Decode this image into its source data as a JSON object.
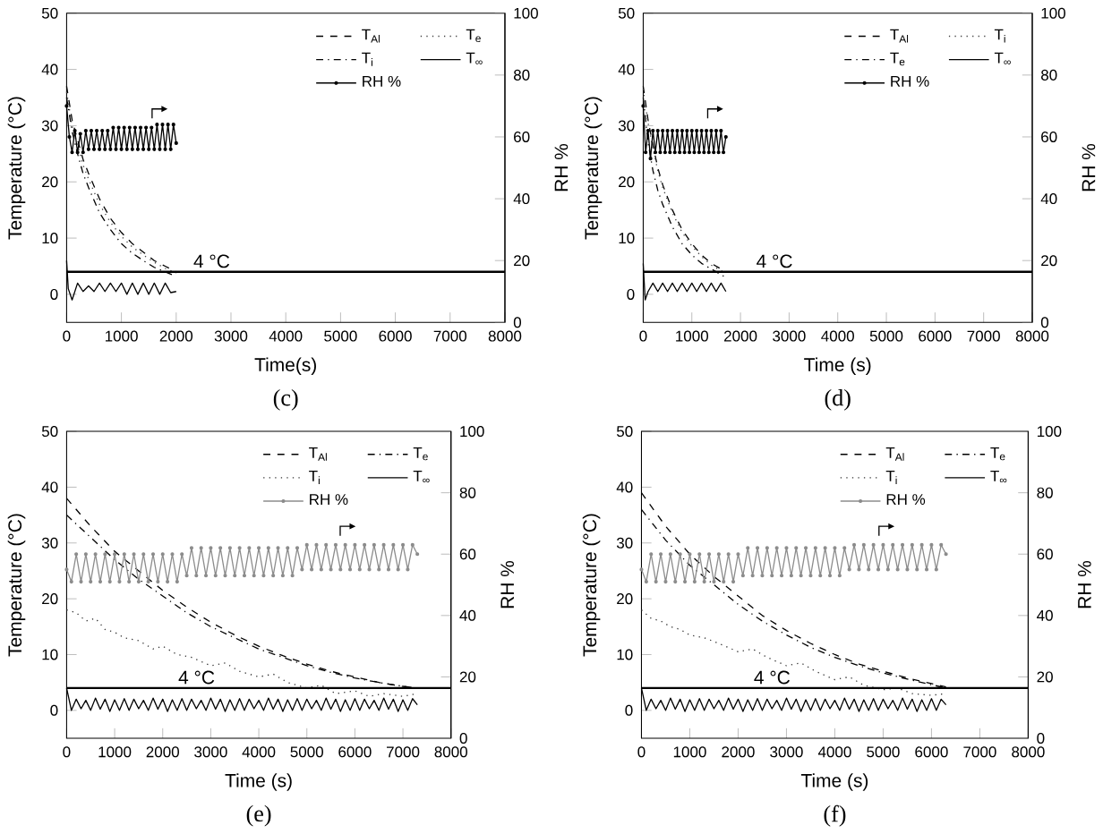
{
  "chart_data": [
    {
      "type": "line",
      "xlabel": "Time(s)",
      "ylabel": "Temperature (°C)",
      "y2label": "RH %",
      "xlim": [
        0,
        8000
      ],
      "xticks": [
        0,
        1000,
        2000,
        3000,
        4000,
        5000,
        6000,
        7000,
        8000
      ],
      "ylim": [
        -5,
        50
      ],
      "yticks": [
        0,
        10,
        20,
        30,
        40,
        50
      ],
      "y2lim": [
        0,
        100
      ],
      "y2ticks": [
        0,
        20,
        40,
        60,
        80,
        100
      ],
      "legend": "top right",
      "annotations": [
        "(c)"
      ],
      "ref_lines": [
        {
          "axis": "y",
          "value": 4,
          "label": "4 °C",
          "color": "#000000"
        }
      ],
      "series": [
        {
          "name": "T$_{Al}$",
          "color": "#000000",
          "line_style": "dashed",
          "x": [
            0,
            100,
            200,
            300,
            400,
            600,
            800,
            1000,
            1200,
            1400,
            1600,
            1800,
            2000
          ],
          "values": [
            37,
            31,
            27.5,
            24,
            21.5,
            17,
            13.5,
            11,
            9,
            7.5,
            6,
            5,
            4
          ]
        },
        {
          "name": "T$_{e}$",
          "color": "#444444",
          "line_style": "dotted",
          "x": [
            0,
            100,
            200,
            300,
            400,
            600,
            800,
            1000,
            1200,
            1400,
            1600,
            1800,
            2000
          ],
          "values": [
            36,
            30,
            26.5,
            23,
            20.5,
            16,
            12.8,
            10.3,
            8.4,
            7,
            5.7,
            4.6,
            3.8
          ]
        },
        {
          "name": "T$_{i}$",
          "color": "#000000",
          "line_style": "dashdot",
          "x": [
            0,
            100,
            200,
            300,
            400,
            600,
            800,
            1000,
            1200,
            1400,
            1600,
            1800,
            2000
          ],
          "values": [
            35,
            29,
            25,
            21.5,
            19,
            14.5,
            11.5,
            9,
            7.3,
            6,
            4.8,
            4,
            3.2
          ]
        },
        {
          "name": "T$_{∞}$",
          "color": "#000000",
          "line_style": "solid",
          "x": [
            0,
            30,
            100,
            200,
            300,
            400,
            500,
            600,
            700,
            800,
            900,
            1000,
            1100,
            1200,
            1300,
            1400,
            1500,
            1600,
            1700,
            1800,
            1900,
            2000
          ],
          "values": [
            6,
            1,
            -1,
            2,
            0.5,
            1.5,
            0.5,
            2,
            0.5,
            2,
            0.5,
            2,
            0,
            2,
            0,
            2,
            0,
            2,
            0,
            2,
            0.3,
            0.5
          ]
        },
        {
          "name": "RH %",
          "color": "#000000",
          "line_style": "solid",
          "marker": "circle",
          "axis": "y2",
          "x": [
            0,
            50,
            100,
            150,
            200,
            250,
            300,
            350,
            400,
            450,
            500,
            550,
            600,
            650,
            700,
            750,
            800,
            850,
            900,
            950,
            1000,
            1050,
            1100,
            1150,
            1200,
            1250,
            1300,
            1350,
            1400,
            1450,
            1500,
            1550,
            1600,
            1650,
            1700,
            1750,
            1800,
            1850,
            1900,
            1950,
            2000
          ],
          "values": [
            70,
            60,
            55,
            62,
            55,
            61,
            55,
            62,
            56,
            62,
            56,
            62,
            56,
            62,
            56,
            62,
            56,
            63,
            56,
            63,
            56,
            63,
            56,
            63,
            56,
            63,
            56,
            63,
            56,
            63,
            56,
            63,
            56,
            64,
            56,
            64,
            56,
            64,
            56,
            64,
            58
          ]
        }
      ]
    },
    {
      "type": "line",
      "xlabel": "Time (s)",
      "ylabel": "Temperature (°C)",
      "y2label": "RH %",
      "xlim": [
        0,
        8000
      ],
      "xticks": [
        0,
        1000,
        2000,
        3000,
        4000,
        5000,
        6000,
        7000,
        8000
      ],
      "ylim": [
        -5,
        50
      ],
      "yticks": [
        0,
        10,
        20,
        30,
        40,
        50
      ],
      "y2lim": [
        0,
        100
      ],
      "y2ticks": [
        0,
        20,
        40,
        60,
        80,
        100
      ],
      "legend": "top right",
      "annotations": [
        "(d)"
      ],
      "ref_lines": [
        {
          "axis": "y",
          "value": 4,
          "label": "4 °C",
          "color": "#000000"
        }
      ],
      "series": [
        {
          "name": "T$_{Al}$",
          "color": "#000000",
          "line_style": "dashed",
          "x": [
            0,
            100,
            200,
            300,
            400,
            600,
            800,
            1000,
            1200,
            1400,
            1600,
            1700
          ],
          "values": [
            37,
            31,
            26.5,
            22.5,
            19.5,
            15,
            11.5,
            9,
            7,
            5.5,
            4.5,
            4
          ]
        },
        {
          "name": "T$_{i}$",
          "color": "#444444",
          "line_style": "dotted",
          "x": [
            0,
            100,
            200,
            300,
            400,
            600,
            800,
            1000,
            1200,
            1400,
            1600,
            1700
          ],
          "values": [
            36.5,
            30.5,
            26,
            22,
            19,
            14.5,
            11,
            8.6,
            6.7,
            5.2,
            4.2,
            3.8
          ]
        },
        {
          "name": "T$_{e}$",
          "color": "#000000",
          "line_style": "dashdot",
          "x": [
            0,
            100,
            200,
            300,
            400,
            600,
            800,
            1000,
            1200,
            1400,
            1600,
            1700
          ],
          "values": [
            35,
            27,
            22,
            18.5,
            16,
            12,
            9,
            7,
            5.5,
            4.5,
            3.5,
            3
          ]
        },
        {
          "name": "T$_{∞}$",
          "color": "#000000",
          "line_style": "solid",
          "x": [
            0,
            40,
            100,
            200,
            300,
            400,
            500,
            600,
            700,
            800,
            900,
            1000,
            1100,
            1200,
            1300,
            1400,
            1500,
            1600,
            1700
          ],
          "values": [
            5.5,
            -1,
            0.5,
            2,
            0.5,
            2,
            0.5,
            2,
            0.5,
            2,
            0.5,
            2,
            0.5,
            2,
            0.5,
            2,
            0.5,
            2,
            0.5
          ]
        },
        {
          "name": "RH %",
          "color": "#000000",
          "line_style": "solid",
          "marker": "circle",
          "axis": "y2",
          "x": [
            0,
            50,
            100,
            150,
            200,
            250,
            300,
            350,
            400,
            450,
            500,
            550,
            600,
            650,
            700,
            750,
            800,
            850,
            900,
            950,
            1000,
            1050,
            1100,
            1150,
            1200,
            1250,
            1300,
            1350,
            1400,
            1450,
            1500,
            1550,
            1600,
            1650,
            1700
          ],
          "values": [
            70,
            55,
            62,
            53,
            62,
            55,
            62,
            55,
            62,
            55,
            62,
            55,
            62,
            55,
            62,
            55,
            62,
            55,
            62,
            55,
            62,
            55,
            62,
            55,
            62,
            55,
            62,
            55,
            62,
            55,
            62,
            55,
            62,
            55,
            60
          ]
        }
      ]
    },
    {
      "type": "line",
      "xlabel": "Time (s)",
      "ylabel": "Temperature (°C)",
      "y2label": "RH %",
      "xlim": [
        0,
        8000
      ],
      "xticks": [
        0,
        1000,
        2000,
        3000,
        4000,
        5000,
        6000,
        7000,
        8000
      ],
      "ylim": [
        -5,
        50
      ],
      "yticks": [
        0,
        10,
        20,
        30,
        40,
        50
      ],
      "y2lim": [
        0,
        100
      ],
      "y2ticks": [
        0,
        20,
        40,
        60,
        80,
        100
      ],
      "legend": "top right",
      "annotations": [
        "(e)"
      ],
      "ref_lines": [
        {
          "axis": "y",
          "value": 4,
          "label": "4 °C",
          "color": "#000000"
        }
      ],
      "series": [
        {
          "name": "T$_{Al}$",
          "color": "#000000",
          "line_style": "dashed",
          "x": [
            0,
            500,
            1000,
            1500,
            2000,
            2500,
            3000,
            3500,
            4000,
            4500,
            5000,
            5500,
            6000,
            6500,
            7000,
            7300
          ],
          "values": [
            38,
            33,
            28.5,
            25,
            21.5,
            18.5,
            15.8,
            13.5,
            11.5,
            9.8,
            8.3,
            7,
            6,
            5,
            4.3,
            4
          ]
        },
        {
          "name": "T$_{e}$",
          "color": "#000000",
          "line_style": "dashdot",
          "x": [
            0,
            500,
            1000,
            1500,
            2000,
            2500,
            3000,
            3500,
            4000,
            4500,
            5000,
            5500,
            6000,
            6500,
            7000,
            7300
          ],
          "values": [
            35,
            31,
            27,
            23.5,
            20.5,
            17.5,
            15,
            13,
            11,
            9.5,
            8,
            6.8,
            5.8,
            5,
            4.3,
            4
          ]
        },
        {
          "name": "T$_{i}$",
          "color": "#333333",
          "line_style": "dotted",
          "x": [
            0,
            200,
            400,
            600,
            800,
            1000,
            1200,
            1500,
            1800,
            2000,
            2300,
            2600,
            3000,
            3300,
            3600,
            4000,
            4300,
            4600,
            5000,
            5300,
            5600,
            6000,
            6300,
            6600,
            7000,
            7300
          ],
          "values": [
            18,
            17.5,
            16,
            16.5,
            14.5,
            14,
            13,
            12.5,
            11,
            11.5,
            10,
            9.5,
            8,
            8.5,
            7,
            6,
            6.5,
            5,
            4,
            4.5,
            3,
            3.5,
            2.5,
            3,
            2.5,
            3
          ]
        },
        {
          "name": "T$_{∞}$",
          "color": "#000000",
          "line_style": "solid",
          "x": [
            0,
            100,
            200,
            300,
            400,
            500,
            600,
            700,
            800,
            900,
            1000,
            1100,
            1200,
            1300,
            1400,
            1500,
            1600,
            1700,
            1800,
            1900,
            2000,
            2100,
            2200,
            2300,
            2400,
            2500,
            2600,
            2700,
            2800,
            2900,
            3000,
            3100,
            3200,
            3300,
            3400,
            3500,
            3600,
            3700,
            3800,
            3900,
            4000,
            4100,
            4200,
            4300,
            4400,
            4500,
            4600,
            4700,
            4800,
            4900,
            5000,
            5100,
            5200,
            5300,
            5400,
            5500,
            5600,
            5700,
            5800,
            5900,
            6000,
            6100,
            6200,
            6300,
            6400,
            6500,
            6600,
            6700,
            6800,
            6900,
            7000,
            7100,
            7200,
            7300
          ],
          "values": [
            4,
            0,
            2,
            0.3,
            1.8,
            0,
            2.2,
            0.2,
            2,
            -0.2,
            1.9,
            0,
            2.1,
            0,
            2,
            0.3,
            1.8,
            0,
            2.2,
            0.2,
            2,
            -0.2,
            1.9,
            0,
            2.1,
            0,
            2,
            0.3,
            1.8,
            0,
            2.2,
            0.2,
            2,
            -0.2,
            1.9,
            0,
            2.1,
            0,
            2,
            0.3,
            1.8,
            0,
            2.2,
            0.2,
            2,
            -0.2,
            1.9,
            0,
            2.1,
            0,
            2,
            0.3,
            1.8,
            0,
            2.2,
            0.2,
            2,
            -0.2,
            1.9,
            0,
            2.1,
            0,
            2,
            0.3,
            1.8,
            0,
            2.2,
            0.2,
            2,
            -0.2,
            1.9,
            0,
            2.1,
            1
          ]
        },
        {
          "name": "RH %",
          "color": "#8c8c8c",
          "line_style": "solid",
          "marker": "circle",
          "axis": "y2",
          "x": [
            0,
            100,
            200,
            300,
            400,
            500,
            600,
            700,
            800,
            900,
            1000,
            1100,
            1200,
            1300,
            1400,
            1500,
            1600,
            1700,
            1800,
            1900,
            2000,
            2100,
            2200,
            2300,
            2400,
            2500,
            2600,
            2700,
            2800,
            2900,
            3000,
            3100,
            3200,
            3300,
            3400,
            3500,
            3600,
            3700,
            3800,
            3900,
            4000,
            4100,
            4200,
            4300,
            4400,
            4500,
            4600,
            4700,
            4800,
            4900,
            5000,
            5100,
            5200,
            5300,
            5400,
            5500,
            5600,
            5700,
            5800,
            5900,
            6000,
            6100,
            6200,
            6300,
            6400,
            6500,
            6600,
            6700,
            6800,
            6900,
            7000,
            7100,
            7200,
            7300
          ],
          "values": [
            55,
            51,
            60,
            51,
            60,
            51,
            60,
            51,
            60,
            51,
            60,
            51,
            60,
            51,
            60,
            51,
            60,
            51,
            60,
            51,
            60,
            51,
            60,
            51,
            60,
            53,
            62,
            53,
            62,
            53,
            62,
            53,
            62,
            53,
            62,
            53,
            62,
            53,
            62,
            53,
            62,
            53,
            62,
            53,
            62,
            53,
            62,
            53,
            62,
            55,
            63,
            55,
            63,
            55,
            63,
            55,
            63,
            55,
            63,
            55,
            63,
            55,
            63,
            55,
            63,
            55,
            63,
            55,
            63,
            55,
            63,
            55,
            63,
            60
          ]
        }
      ]
    },
    {
      "type": "line",
      "xlabel": "Time (s)",
      "ylabel": "Temperature (°C)",
      "y2label": "RH %",
      "xlim": [
        0,
        8000
      ],
      "xticks": [
        0,
        1000,
        2000,
        3000,
        4000,
        5000,
        6000,
        7000,
        8000
      ],
      "ylim": [
        -5,
        50
      ],
      "yticks": [
        0,
        10,
        20,
        30,
        40,
        50
      ],
      "y2lim": [
        0,
        100
      ],
      "y2ticks": [
        0,
        20,
        40,
        60,
        80,
        100
      ],
      "legend": "top right",
      "annotations": [
        "(f)"
      ],
      "ref_lines": [
        {
          "axis": "y",
          "value": 4,
          "label": "4 °C",
          "color": "#000000"
        }
      ],
      "series": [
        {
          "name": "T$_{Al}$",
          "color": "#000000",
          "line_style": "dashed",
          "x": [
            0,
            500,
            1000,
            1500,
            2000,
            2500,
            3000,
            3500,
            4000,
            4500,
            5000,
            5500,
            6000,
            6300
          ],
          "values": [
            39,
            33,
            28,
            24,
            20.5,
            17,
            14.3,
            12,
            10,
            8.3,
            7,
            5.8,
            4.8,
            4.2
          ]
        },
        {
          "name": "T$_{e}$",
          "color": "#000000",
          "line_style": "dashdot",
          "x": [
            0,
            500,
            1000,
            1500,
            2000,
            2500,
            3000,
            3500,
            4000,
            4500,
            5000,
            5500,
            6000,
            6300
          ],
          "values": [
            36,
            30.5,
            26,
            22.5,
            19,
            16,
            13.5,
            11.3,
            9.5,
            8,
            6.7,
            5.6,
            4.6,
            4
          ]
        },
        {
          "name": "T$_{i}$",
          "color": "#333333",
          "line_style": "dotted",
          "x": [
            0,
            200,
            400,
            600,
            800,
            1000,
            1300,
            1600,
            2000,
            2300,
            2600,
            3000,
            3300,
            3600,
            4000,
            4300,
            4600,
            5000,
            5300,
            5600,
            6000,
            6300
          ],
          "values": [
            18,
            16.5,
            16,
            15,
            14.5,
            13.5,
            13,
            12,
            10.5,
            11,
            9.5,
            8,
            8.5,
            7,
            5.5,
            6,
            4.5,
            3.7,
            4,
            3,
            2.7,
            3
          ]
        },
        {
          "name": "T$_{∞}$",
          "color": "#000000",
          "line_style": "solid",
          "x": [
            0,
            100,
            200,
            300,
            400,
            500,
            600,
            700,
            800,
            900,
            1000,
            1100,
            1200,
            1300,
            1400,
            1500,
            1600,
            1700,
            1800,
            1900,
            2000,
            2100,
            2200,
            2300,
            2400,
            2500,
            2600,
            2700,
            2800,
            2900,
            3000,
            3100,
            3200,
            3300,
            3400,
            3500,
            3600,
            3700,
            3800,
            3900,
            4000,
            4100,
            4200,
            4300,
            4400,
            4500,
            4600,
            4700,
            4800,
            4900,
            5000,
            5100,
            5200,
            5300,
            5400,
            5500,
            5600,
            5700,
            5800,
            5900,
            6000,
            6100,
            6200,
            6300
          ],
          "values": [
            4,
            0,
            2,
            0.3,
            1.8,
            0,
            2.2,
            0.2,
            2,
            -0.2,
            1.9,
            0,
            2.1,
            0,
            2,
            0.3,
            1.8,
            0,
            2.2,
            0.2,
            2,
            -0.2,
            1.9,
            0,
            2.1,
            0,
            2,
            0.3,
            1.8,
            0,
            2.2,
            0.2,
            2,
            -0.2,
            1.9,
            0,
            2.1,
            0,
            2,
            0.3,
            1.8,
            0,
            2.2,
            0.2,
            2,
            -0.2,
            1.9,
            0,
            2.1,
            0,
            2,
            0.3,
            1.8,
            0,
            2.2,
            0.2,
            2,
            -0.2,
            1.9,
            0,
            2.1,
            0,
            2,
            1
          ]
        },
        {
          "name": "RH %",
          "color": "#8c8c8c",
          "line_style": "solid",
          "marker": "circle",
          "axis": "y2",
          "x": [
            0,
            100,
            200,
            300,
            400,
            500,
            600,
            700,
            800,
            900,
            1000,
            1100,
            1200,
            1300,
            1400,
            1500,
            1600,
            1700,
            1800,
            1900,
            2000,
            2100,
            2200,
            2300,
            2400,
            2500,
            2600,
            2700,
            2800,
            2900,
            3000,
            3100,
            3200,
            3300,
            3400,
            3500,
            3600,
            3700,
            3800,
            3900,
            4000,
            4100,
            4200,
            4300,
            4400,
            4500,
            4600,
            4700,
            4800,
            4900,
            5000,
            5100,
            5200,
            5300,
            5400,
            5500,
            5600,
            5700,
            5800,
            5900,
            6000,
            6100,
            6200,
            6300
          ],
          "values": [
            55,
            51,
            60,
            51,
            60,
            51,
            60,
            51,
            60,
            51,
            60,
            51,
            60,
            51,
            60,
            51,
            60,
            51,
            60,
            51,
            60,
            53,
            62,
            53,
            62,
            53,
            62,
            53,
            62,
            53,
            62,
            53,
            62,
            53,
            62,
            53,
            62,
            53,
            62,
            53,
            62,
            53,
            62,
            55,
            63,
            55,
            63,
            55,
            63,
            55,
            63,
            55,
            63,
            55,
            63,
            55,
            63,
            55,
            63,
            55,
            63,
            55,
            63,
            60
          ]
        }
      ]
    }
  ]
}
